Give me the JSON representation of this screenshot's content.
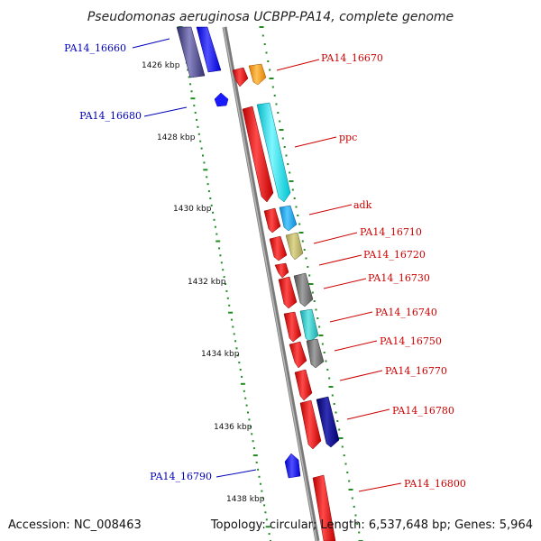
{
  "title": "Pseudomonas aeruginosa UCBPP-PA14, complete genome",
  "footer": {
    "accession": "Accession: NC_008463",
    "topology": "Topology: circular; Length: 6,537,648 bp; Genes: 5,964"
  },
  "ruler": [
    "1426 kbp",
    "1428 kbp",
    "1430 kbp",
    "1432 kbp",
    "1434 kbp",
    "1436 kbp",
    "1438 kbp"
  ],
  "colors": {
    "backbone": "#8a8a8a",
    "cds": "#ff0000",
    "tick": "#228b22",
    "label_red": "#cc0000",
    "label_blue": "#0000bb"
  },
  "features": {
    "PA14_16660": "PA14_16660",
    "PA14_16670": "PA14_16670",
    "PA14_16680": "PA14_16680",
    "ppc": "ppc",
    "adk": "adk",
    "PA14_16710": "PA14_16710",
    "PA14_16720": "PA14_16720",
    "PA14_16730": "PA14_16730",
    "PA14_16740": "PA14_16740",
    "PA14_16750": "PA14_16750",
    "PA14_16770": "PA14_16770",
    "PA14_16780": "PA14_16780",
    "PA14_16790": "PA14_16790",
    "PA14_16800": "PA14_16800"
  }
}
